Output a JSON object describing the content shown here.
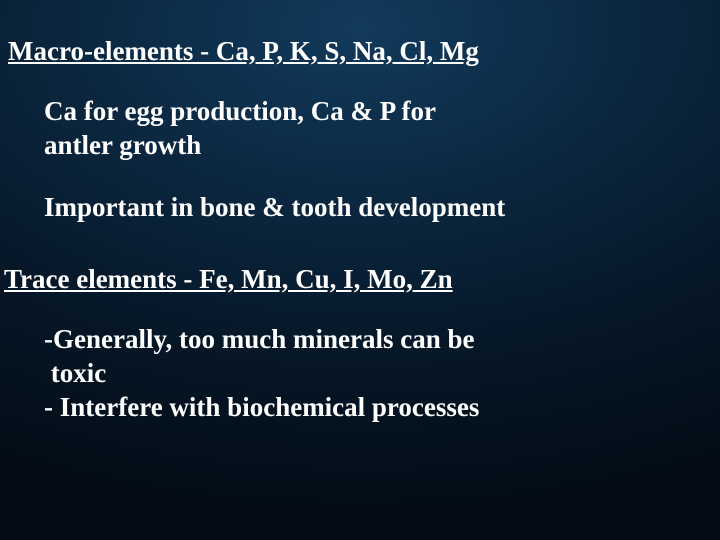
{
  "background": {
    "gradient_center": "#123a5c",
    "gradient_mid": "#0c2a44",
    "gradient_outer": "#061829",
    "gradient_edge": "#030c16"
  },
  "text_color": "#ffffff",
  "font_family": "Times New Roman",
  "heading_fontsize": 27,
  "section1": {
    "title": "Macro-elements - Ca, P, K, S, Na, Cl, Mg",
    "point1_line1": "Ca for egg production, Ca & P for",
    "point1_line2": "antler growth",
    "point2": "Important in bone & tooth development"
  },
  "section2": {
    "title": "Trace elements - Fe, Mn, Cu, I, Mo, Zn",
    "point1_line1": "-Generally, too much minerals can be",
    "point1_line2": " toxic",
    "point2": "- Interfere with biochemical processes"
  }
}
